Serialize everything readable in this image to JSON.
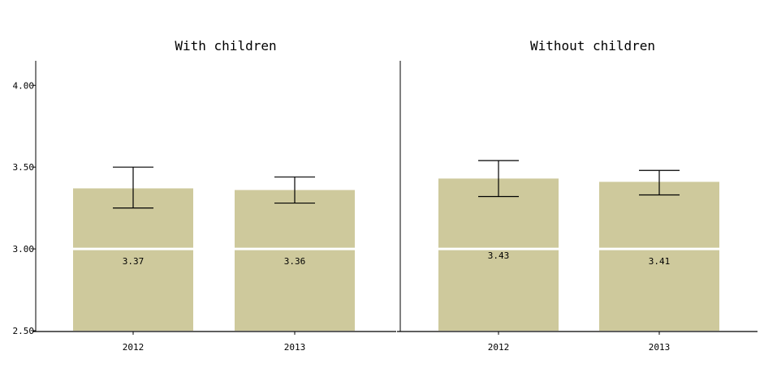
{
  "chart_data": [
    {
      "type": "bar",
      "title": "With children",
      "categories": [
        "2012",
        "2013"
      ],
      "values": [
        3.37,
        3.36
      ],
      "error_low": [
        3.25,
        3.28
      ],
      "error_high": [
        3.5,
        3.44
      ],
      "data_labels": [
        "3.37",
        "3.36"
      ],
      "ylim": [
        2.5,
        4.15
      ],
      "yticks": [
        "2.50",
        "3.00",
        "3.50",
        "4.00"
      ],
      "grid": false
    },
    {
      "type": "bar",
      "title": "Without children",
      "categories": [
        "2012",
        "2013"
      ],
      "values": [
        3.43,
        3.41
      ],
      "error_low": [
        3.32,
        3.33
      ],
      "error_high": [
        3.54,
        3.48
      ],
      "data_labels": [
        "3.43",
        "3.41"
      ],
      "ylim": [
        2.5,
        4.15
      ],
      "yticks": [],
      "grid": false
    }
  ],
  "colors": {
    "bar": "#cec99c",
    "axis": "#000000",
    "reference_line": "#ffffff"
  }
}
